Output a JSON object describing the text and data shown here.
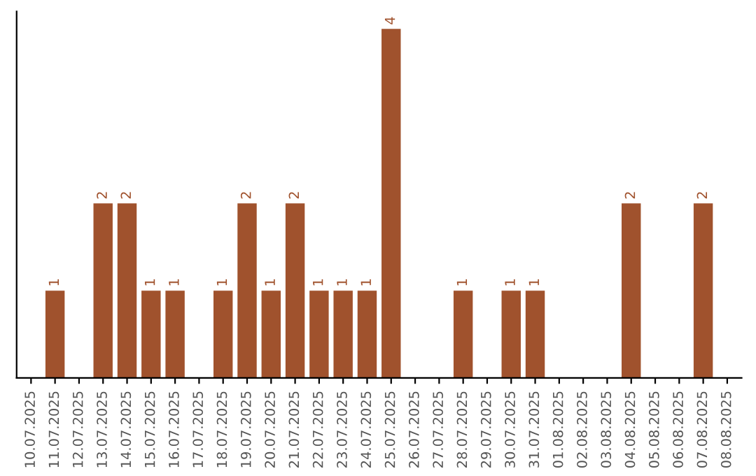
{
  "chart_data": {
    "type": "bar",
    "categories": [
      "10.07.2025",
      "11.07.2025",
      "12.07.2025",
      "13.07.2025",
      "14.07.2025",
      "15.07.2025",
      "16.07.2025",
      "17.07.2025",
      "18.07.2025",
      "19.07.2025",
      "20.07.2025",
      "21.07.2025",
      "22.07.2025",
      "23.07.2025",
      "24.07.2025",
      "25.07.2025",
      "26.07.2025",
      "27.07.2025",
      "28.07.2025",
      "29.07.2025",
      "30.07.2025",
      "31.07.2025",
      "01.08.2025",
      "02.08.2025",
      "03.08.2025",
      "04.08.2025",
      "05.08.2025",
      "06.08.2025",
      "07.08.2025",
      "08.08.2025"
    ],
    "values": [
      0,
      1,
      0,
      2,
      2,
      1,
      1,
      0,
      1,
      2,
      1,
      2,
      1,
      1,
      1,
      4,
      0,
      0,
      1,
      0,
      1,
      1,
      0,
      0,
      0,
      2,
      0,
      0,
      2,
      0
    ],
    "value_labels": [
      null,
      "1",
      null,
      "2",
      "2",
      "1",
      "1",
      null,
      "1",
      "2",
      "1",
      "2",
      "1",
      "1",
      "1",
      "4",
      null,
      null,
      "1",
      null,
      "1",
      "1",
      null,
      null,
      null,
      "2",
      null,
      null,
      "2",
      null
    ],
    "color": "#a0522d",
    "ylim": [
      0,
      4.2
    ],
    "tick_labels": "x",
    "grid": false,
    "legend": false
  }
}
